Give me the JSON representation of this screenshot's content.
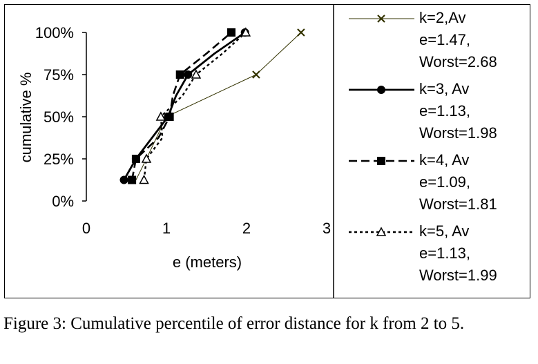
{
  "caption": "Figure 3: Cumulative percentile of error distance for k from 2 to 5.",
  "chart_data": {
    "type": "line",
    "title": "",
    "xlabel": "e (meters)",
    "ylabel": "cumulative %",
    "xlim": [
      0,
      3
    ],
    "ylim": [
      0,
      100
    ],
    "xticks": [
      "0",
      "1",
      "2",
      "3"
    ],
    "yticks": [
      "0%",
      "25%",
      "50%",
      "75%",
      "100%"
    ],
    "grid": false,
    "legend_position": "right",
    "series": [
      {
        "name": "k=2,Av e=1.47, Worst=2.68",
        "legend_lines": [
          "k=2,Av",
          "e=1.47,",
          "Worst=2.68"
        ],
        "marker": "x",
        "line_style": "thin",
        "color": "#333300",
        "points": [
          [
            0.62,
            12.5
          ],
          [
            0.75,
            25
          ],
          [
            1.0,
            50
          ],
          [
            2.12,
            75
          ],
          [
            2.68,
            100
          ]
        ],
        "marked": [
          false,
          false,
          false,
          true,
          true
        ]
      },
      {
        "name": "k=3, Av e=1.13, Worst=1.98",
        "legend_lines": [
          "k=3, Av",
          "e=1.13,",
          "Worst=1.98"
        ],
        "marker": "circle",
        "line_style": "solid",
        "color": "#000000",
        "points": [
          [
            0.47,
            12.5
          ],
          [
            0.62,
            25
          ],
          [
            0.82,
            37.5
          ],
          [
            1.02,
            50
          ],
          [
            1.12,
            62.5
          ],
          [
            1.27,
            75
          ],
          [
            1.6,
            87.5
          ],
          [
            1.98,
            100
          ]
        ],
        "marked": [
          true,
          true,
          false,
          true,
          false,
          true,
          false,
          true
        ]
      },
      {
        "name": "k=4, Av e=1.09, Worst=1.81",
        "legend_lines": [
          "k=4, Av",
          "e=1.09,",
          "Worst=1.81"
        ],
        "marker": "square",
        "line_style": "dashed",
        "color": "#000000",
        "points": [
          [
            0.57,
            12.5
          ],
          [
            0.62,
            25
          ],
          [
            0.9,
            37.5
          ],
          [
            1.04,
            50
          ],
          [
            1.08,
            62.5
          ],
          [
            1.17,
            75
          ],
          [
            1.5,
            87.5
          ],
          [
            1.81,
            100
          ]
        ],
        "marked": [
          true,
          true,
          false,
          true,
          false,
          true,
          false,
          true
        ]
      },
      {
        "name": "k=5, Av e=1.13, Worst=1.99",
        "legend_lines": [
          "k=5, Av",
          "e=1.13,",
          "Worst=1.99"
        ],
        "marker": "triangle",
        "line_style": "dotted",
        "color": "#000000",
        "points": [
          [
            0.72,
            12.5
          ],
          [
            0.75,
            25
          ],
          [
            0.95,
            37.5
          ],
          [
            0.93,
            50
          ],
          [
            1.2,
            62.5
          ],
          [
            1.37,
            75
          ],
          [
            1.7,
            87.5
          ],
          [
            1.99,
            100
          ]
        ],
        "marked": [
          true,
          true,
          false,
          true,
          false,
          true,
          false,
          true
        ]
      }
    ]
  }
}
